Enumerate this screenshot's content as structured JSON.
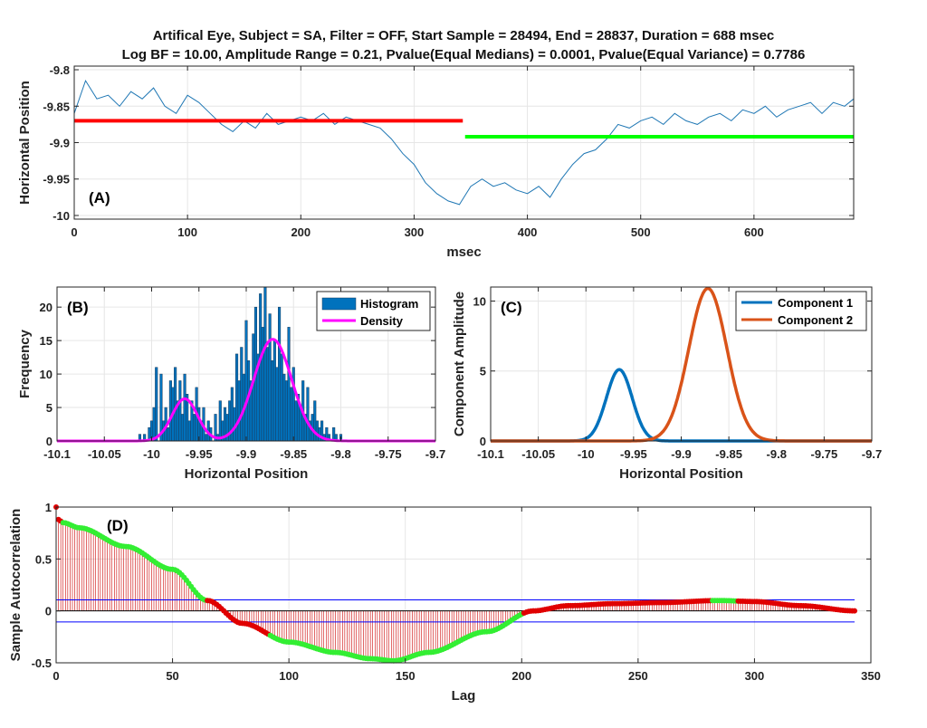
{
  "figure_title": {
    "line1": "Artifical Eye, Subject = SA, Filter = OFF, Start Sample = 28494, End = 28837, Duration = 688 msec",
    "line2": "Log BF = 10.00, Amplitude Range = 0.21, Pvalue(Equal Medians) = 0.0001, Pvalue(Equal Variance) = 0.7786"
  },
  "colors": {
    "trace": "#1f77b4",
    "segment1": "#ff0000",
    "segment2": "#00ff00",
    "histogram": "#0072bd",
    "density": "#ff00ff",
    "component1": "#0072bd",
    "component2": "#d95319",
    "conf_band": "#0000ff",
    "stem": "#cc0000",
    "acf_red": "#e00000",
    "acf_green": "#33ee33"
  },
  "chart_data": [
    {
      "type": "line",
      "panel": "(A)",
      "xlabel": "msec",
      "ylabel": "Horizontal Position",
      "xlim": [
        0,
        688
      ],
      "ylim": [
        -10.005,
        -9.795
      ],
      "xticks": [
        0,
        100,
        200,
        300,
        400,
        500,
        600
      ],
      "yticks": [
        -10,
        -9.95,
        -9.9,
        -9.85,
        -9.8
      ],
      "series": [
        {
          "x": [
            0,
            10,
            20,
            30,
            40,
            50,
            60,
            70,
            80,
            90,
            100,
            110,
            120,
            130,
            140,
            150,
            160,
            170,
            180,
            190,
            200,
            210,
            220,
            230,
            240,
            250,
            260,
            270,
            280,
            290,
            300,
            310,
            320,
            330,
            340,
            350,
            360,
            370,
            380,
            390,
            400,
            410,
            420,
            430,
            440,
            450,
            460,
            470,
            480,
            490,
            500,
            510,
            520,
            530,
            540,
            550,
            560,
            570,
            580,
            590,
            600,
            610,
            620,
            630,
            640,
            650,
            660,
            670,
            680,
            688
          ],
          "y": [
            -9.86,
            -9.815,
            -9.84,
            -9.835,
            -9.85,
            -9.83,
            -9.84,
            -9.825,
            -9.85,
            -9.86,
            -9.835,
            -9.845,
            -9.86,
            -9.875,
            -9.885,
            -9.87,
            -9.88,
            -9.86,
            -9.875,
            -9.87,
            -9.865,
            -9.87,
            -9.86,
            -9.875,
            -9.865,
            -9.87,
            -9.875,
            -9.88,
            -9.895,
            -9.915,
            -9.93,
            -9.955,
            -9.97,
            -9.98,
            -9.985,
            -9.96,
            -9.95,
            -9.96,
            -9.955,
            -9.965,
            -9.97,
            -9.96,
            -9.975,
            -9.95,
            -9.93,
            -9.915,
            -9.91,
            -9.895,
            -9.875,
            -9.88,
            -9.87,
            -9.865,
            -9.875,
            -9.86,
            -9.87,
            -9.875,
            -9.865,
            -9.86,
            -9.87,
            -9.855,
            -9.86,
            -9.85,
            -9.865,
            -9.855,
            -9.85,
            -9.845,
            -9.86,
            -9.845,
            -9.85,
            -9.84
          ]
        }
      ],
      "segments": [
        {
          "x": [
            0,
            343
          ],
          "y": -9.87
        },
        {
          "x": [
            345,
            688
          ],
          "y": -9.892
        }
      ]
    },
    {
      "type": "bar",
      "panel": "(B)",
      "xlabel": "Horizontal Position",
      "ylabel": "Frequency",
      "xlim": [
        -10.1,
        -9.7
      ],
      "ylim": [
        0,
        23
      ],
      "xticks": [
        -10.1,
        -10.05,
        -10,
        -9.95,
        -9.9,
        -9.85,
        -9.8,
        -9.75,
        -9.7
      ],
      "yticks": [
        0,
        5,
        10,
        15,
        20
      ],
      "legend": [
        "Histogram",
        "Density"
      ],
      "histogram": {
        "bin_width": 0.0025,
        "bin_centers": [
          -10.0125,
          -10.01,
          -10.0075,
          -10.005,
          -10.0025,
          -10,
          -9.9975,
          -9.995,
          -9.9925,
          -9.99,
          -9.9875,
          -9.985,
          -9.9825,
          -9.98,
          -9.9775,
          -9.975,
          -9.9725,
          -9.97,
          -9.9675,
          -9.965,
          -9.9625,
          -9.96,
          -9.9575,
          -9.955,
          -9.9525,
          -9.95,
          -9.9475,
          -9.945,
          -9.9425,
          -9.94,
          -9.9375,
          -9.935,
          -9.9325,
          -9.93,
          -9.9275,
          -9.925,
          -9.9225,
          -9.92,
          -9.9175,
          -9.915,
          -9.9125,
          -9.91,
          -9.9075,
          -9.905,
          -9.9025,
          -9.9,
          -9.8975,
          -9.895,
          -9.8925,
          -9.89,
          -9.8875,
          -9.885,
          -9.8825,
          -9.88,
          -9.8775,
          -9.875,
          -9.8725,
          -9.87,
          -9.8675,
          -9.865,
          -9.8625,
          -9.86,
          -9.8575,
          -9.855,
          -9.8525,
          -9.85,
          -9.8475,
          -9.845,
          -9.8425,
          -9.84,
          -9.8375,
          -9.835,
          -9.8325,
          -9.83,
          -9.8275,
          -9.825,
          -9.8225,
          -9.82,
          -9.8175,
          -9.815,
          -9.8125,
          -9.81,
          -9.8075,
          -9.805,
          -9.8025,
          -9.8
        ],
        "counts": [
          1,
          0,
          1,
          0,
          2,
          3,
          5,
          11,
          0,
          10,
          3,
          5,
          2,
          9,
          8,
          11,
          6,
          9,
          4,
          10,
          7,
          3,
          6,
          4,
          8,
          5,
          3,
          5,
          1,
          3,
          2,
          0,
          4,
          1,
          6,
          3,
          5,
          4,
          6,
          8,
          5,
          13,
          9,
          14,
          10,
          18,
          12,
          9,
          16,
          20,
          13,
          22,
          17,
          23,
          14,
          19,
          12,
          15,
          11,
          20,
          13,
          10,
          9,
          17,
          8,
          11,
          6,
          7,
          5,
          9,
          4,
          8,
          3,
          4,
          6,
          3,
          2,
          3,
          1,
          2,
          1,
          0,
          2,
          1,
          0,
          1
        ]
      },
      "density_components": [
        {
          "mean": -9.965,
          "sd": 0.0135,
          "peak": 6.3
        },
        {
          "mean": -9.872,
          "sd": 0.02,
          "peak": 15.2
        }
      ]
    },
    {
      "type": "line",
      "panel": "(C)",
      "xlabel": "Horizontal Position",
      "ylabel": "Component Amplitude",
      "xlim": [
        -10.1,
        -9.7
      ],
      "ylim": [
        0,
        11
      ],
      "xticks": [
        -10.1,
        -10.05,
        -10,
        -9.95,
        -9.9,
        -9.85,
        -9.8,
        -9.75,
        -9.7
      ],
      "yticks": [
        0,
        5,
        10
      ],
      "series": [
        {
          "name": "Component 1",
          "mean": -9.965,
          "sd": 0.0135,
          "peak": 5.1
        },
        {
          "name": "Component 2",
          "mean": -9.872,
          "sd": 0.02,
          "peak": 10.9
        }
      ]
    },
    {
      "type": "line",
      "panel": "(D)",
      "xlabel": "Lag",
      "ylabel": "Sample Autocorrelation",
      "xlim": [
        0,
        350
      ],
      "ylim": [
        -0.5,
        1
      ],
      "xticks": [
        0,
        50,
        100,
        150,
        200,
        250,
        300,
        350
      ],
      "yticks": [
        -0.5,
        0,
        0.5,
        1
      ],
      "confidence_bound": 0.106,
      "acf_knots": {
        "lag": [
          0,
          1,
          3,
          10,
          30,
          50,
          65,
          80,
          100,
          120,
          135,
          145,
          160,
          185,
          205,
          220,
          240,
          260,
          285,
          300,
          320,
          343
        ],
        "value": [
          1,
          0.88,
          0.85,
          0.8,
          0.62,
          0.4,
          0.1,
          -0.12,
          -0.3,
          -0.4,
          -0.46,
          -0.48,
          -0.4,
          -0.2,
          0,
          0.05,
          0.07,
          0.08,
          0.1,
          0.09,
          0.05,
          0
        ]
      },
      "green_ranges": [
        [
          3,
          64
        ],
        [
          92,
          200
        ],
        [
          282,
          292
        ]
      ]
    }
  ]
}
